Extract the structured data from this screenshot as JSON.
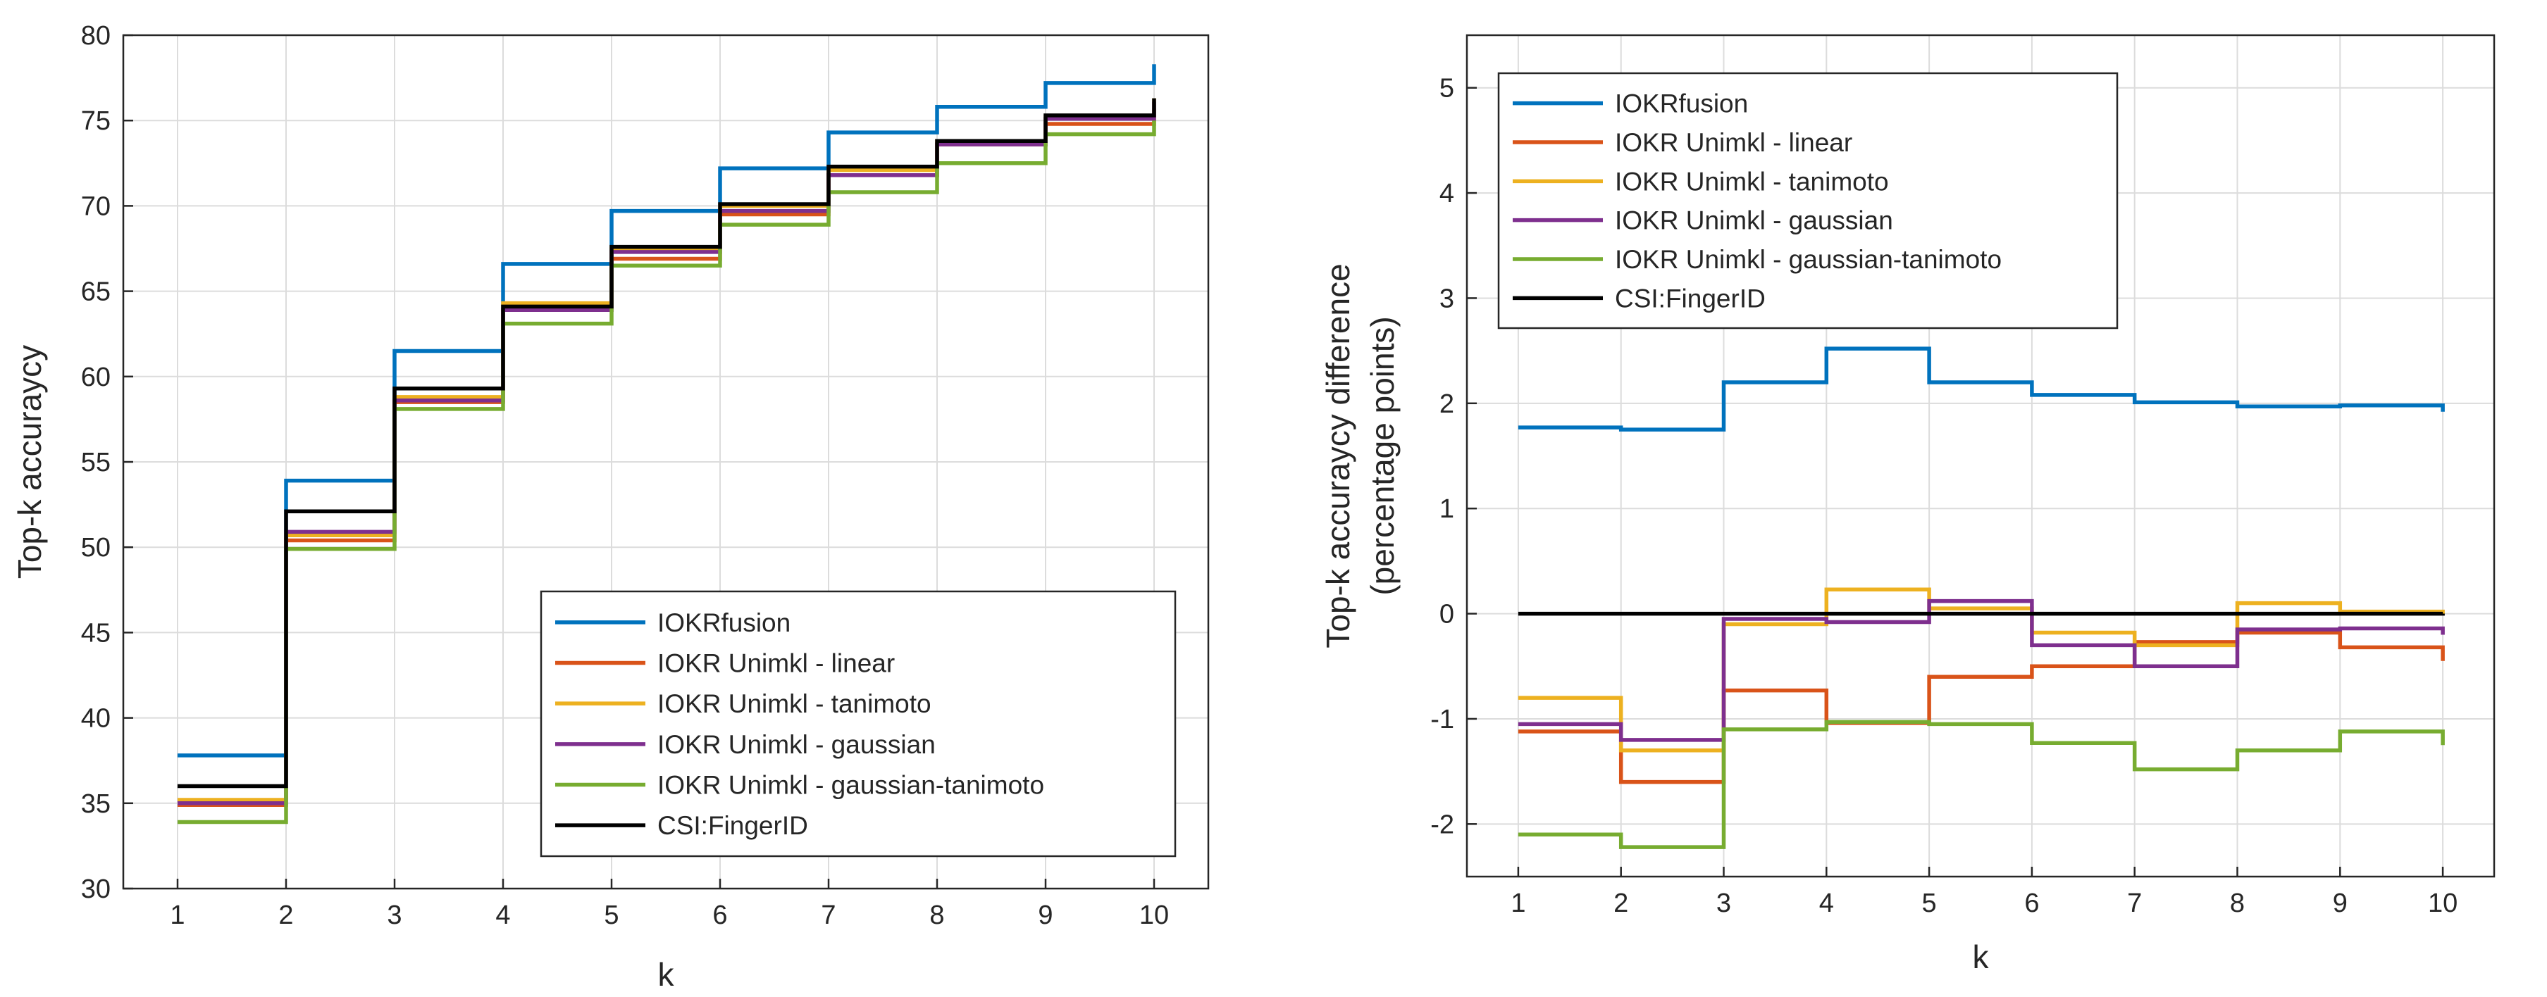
{
  "chart_data": [
    {
      "type": "line",
      "step": true,
      "title": "",
      "xlabel": "k",
      "ylabel": "Top-k accuraycy",
      "xlim": [
        0.5,
        10.5
      ],
      "ylim": [
        30,
        80
      ],
      "xticks": [
        "1",
        "2",
        "3",
        "4",
        "5",
        "6",
        "7",
        "8",
        "9",
        "10"
      ],
      "yticks": [
        "30",
        "35",
        "40",
        "45",
        "50",
        "55",
        "60",
        "65",
        "70",
        "75",
        "80"
      ],
      "grid": true,
      "legend_position": "bottom-right",
      "x": [
        1,
        2,
        3,
        4,
        5,
        6,
        7,
        8,
        9,
        10
      ],
      "series": [
        {
          "name": "IOKRfusion",
          "color": "#0072BD",
          "values": [
            37.8,
            53.9,
            61.5,
            66.6,
            69.7,
            72.2,
            74.3,
            75.8,
            77.2,
            78.3
          ]
        },
        {
          "name": "IOKR Unimkl - linear",
          "color": "#D95319",
          "values": [
            34.9,
            50.4,
            58.5,
            63.9,
            66.9,
            69.5,
            71.8,
            73.6,
            74.8,
            75.7
          ]
        },
        {
          "name": "IOKR Unimkl - tanimoto",
          "color": "#EDB120",
          "values": [
            35.2,
            50.7,
            58.8,
            64.3,
            67.5,
            70.0,
            72.1,
            73.8,
            75.2,
            76.3
          ]
        },
        {
          "name": "IOKR Unimkl - gaussian",
          "color": "#7E2F8E",
          "values": [
            35.0,
            50.9,
            58.6,
            63.9,
            67.3,
            69.7,
            71.8,
            73.6,
            75.1,
            76.1
          ]
        },
        {
          "name": "IOKR Unimkl - gaussian-tanimoto",
          "color": "#77AC30",
          "values": [
            33.9,
            49.9,
            58.1,
            63.1,
            66.5,
            68.9,
            70.8,
            72.5,
            74.2,
            75.0
          ]
        },
        {
          "name": "CSI:FingerID",
          "color": "#000000",
          "values": [
            36.0,
            52.1,
            59.3,
            64.1,
            67.6,
            70.1,
            72.3,
            73.8,
            75.3,
            76.3
          ]
        }
      ]
    },
    {
      "type": "line",
      "step": true,
      "title": "",
      "xlabel": "k",
      "ylabel": "Top-k accuraycy difference",
      "ylabel2": "(percentage points)",
      "xlim": [
        0.5,
        10.5
      ],
      "ylim": [
        -2.5,
        5.5
      ],
      "xticks": [
        "1",
        "2",
        "3",
        "4",
        "5",
        "6",
        "7",
        "8",
        "9",
        "10"
      ],
      "yticks": [
        "-2",
        "-1",
        "0",
        "1",
        "2",
        "3",
        "4",
        "5"
      ],
      "grid": true,
      "legend_position": "top-left",
      "x": [
        1,
        2,
        3,
        4,
        5,
        6,
        7,
        8,
        9,
        10
      ],
      "series": [
        {
          "name": "IOKRfusion",
          "color": "#0072BD",
          "values": [
            1.77,
            1.75,
            2.2,
            2.52,
            2.2,
            2.08,
            2.01,
            1.97,
            1.98,
            1.92
          ]
        },
        {
          "name": "IOKR Unimkl - linear",
          "color": "#D95319",
          "values": [
            -1.12,
            -1.6,
            -0.73,
            -1.04,
            -0.6,
            -0.5,
            -0.27,
            -0.18,
            -0.32,
            -0.45
          ]
        },
        {
          "name": "IOKR Unimkl - tanimoto",
          "color": "#EDB120",
          "values": [
            -0.8,
            -1.3,
            -0.1,
            0.23,
            0.05,
            -0.18,
            -0.3,
            0.1,
            0.02,
            0.0
          ]
        },
        {
          "name": "IOKR Unimkl - gaussian",
          "color": "#7E2F8E",
          "values": [
            -1.05,
            -1.2,
            -0.05,
            -0.08,
            0.12,
            -0.3,
            -0.5,
            -0.15,
            -0.14,
            -0.2
          ]
        },
        {
          "name": "IOKR Unimkl - gaussian-tanimoto",
          "color": "#77AC30",
          "values": [
            -2.1,
            -2.22,
            -1.1,
            -1.03,
            -1.05,
            -1.23,
            -1.48,
            -1.3,
            -1.12,
            -1.25
          ]
        },
        {
          "name": "CSI:FingerID",
          "color": "#000000",
          "values": [
            0,
            0,
            0,
            0,
            0,
            0,
            0,
            0,
            0,
            0
          ]
        }
      ]
    }
  ]
}
